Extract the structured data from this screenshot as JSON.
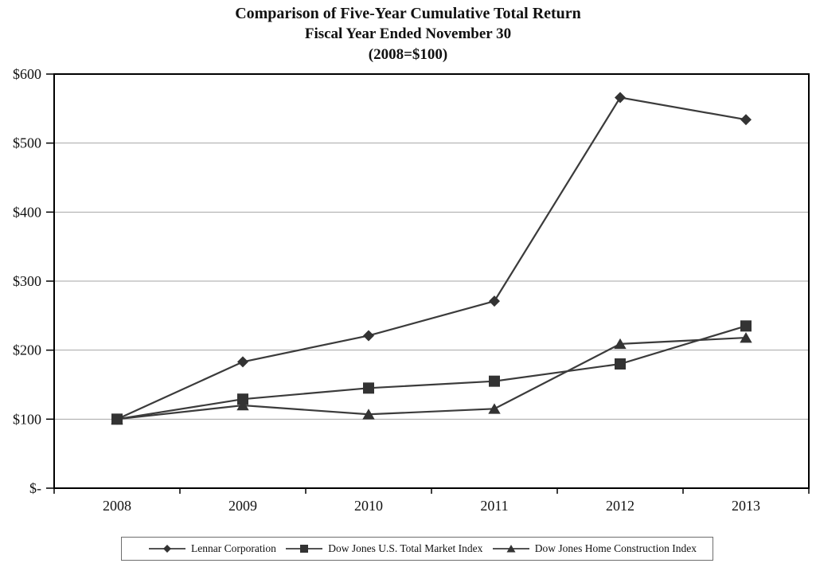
{
  "title": {
    "line1": "Comparison of Five-Year Cumulative Total Return",
    "line2": "Fiscal Year Ended November 30",
    "line3": "(2008=$100)"
  },
  "chart_data": {
    "type": "line",
    "categories": [
      "2008",
      "2009",
      "2010",
      "2011",
      "2012",
      "2013"
    ],
    "series": [
      {
        "name": "Lennar Corporation",
        "marker": "diamond",
        "values": [
          100,
          183,
          221,
          271,
          566,
          534
        ]
      },
      {
        "name": "Dow Jones U.S. Total Market Index",
        "marker": "square",
        "values": [
          100,
          129,
          145,
          155,
          180,
          235
        ]
      },
      {
        "name": "Dow Jones Home Construction Index",
        "marker": "triangle",
        "values": [
          100,
          120,
          107,
          115,
          209,
          218
        ]
      }
    ],
    "ylim": [
      0,
      600
    ],
    "y_step": 100,
    "y_tick_labels": [
      "$-",
      "$100",
      "$200",
      "$300",
      "$400",
      "$500",
      "$600"
    ],
    "xlabel": "",
    "ylabel": "",
    "grid": true,
    "legend_position": "bottom",
    "colors": {
      "line": "#3b3b3b",
      "marker": "#333333",
      "grid": "#a6a6a6",
      "axis": "#000000",
      "text": "#111111",
      "background": "#ffffff"
    }
  }
}
